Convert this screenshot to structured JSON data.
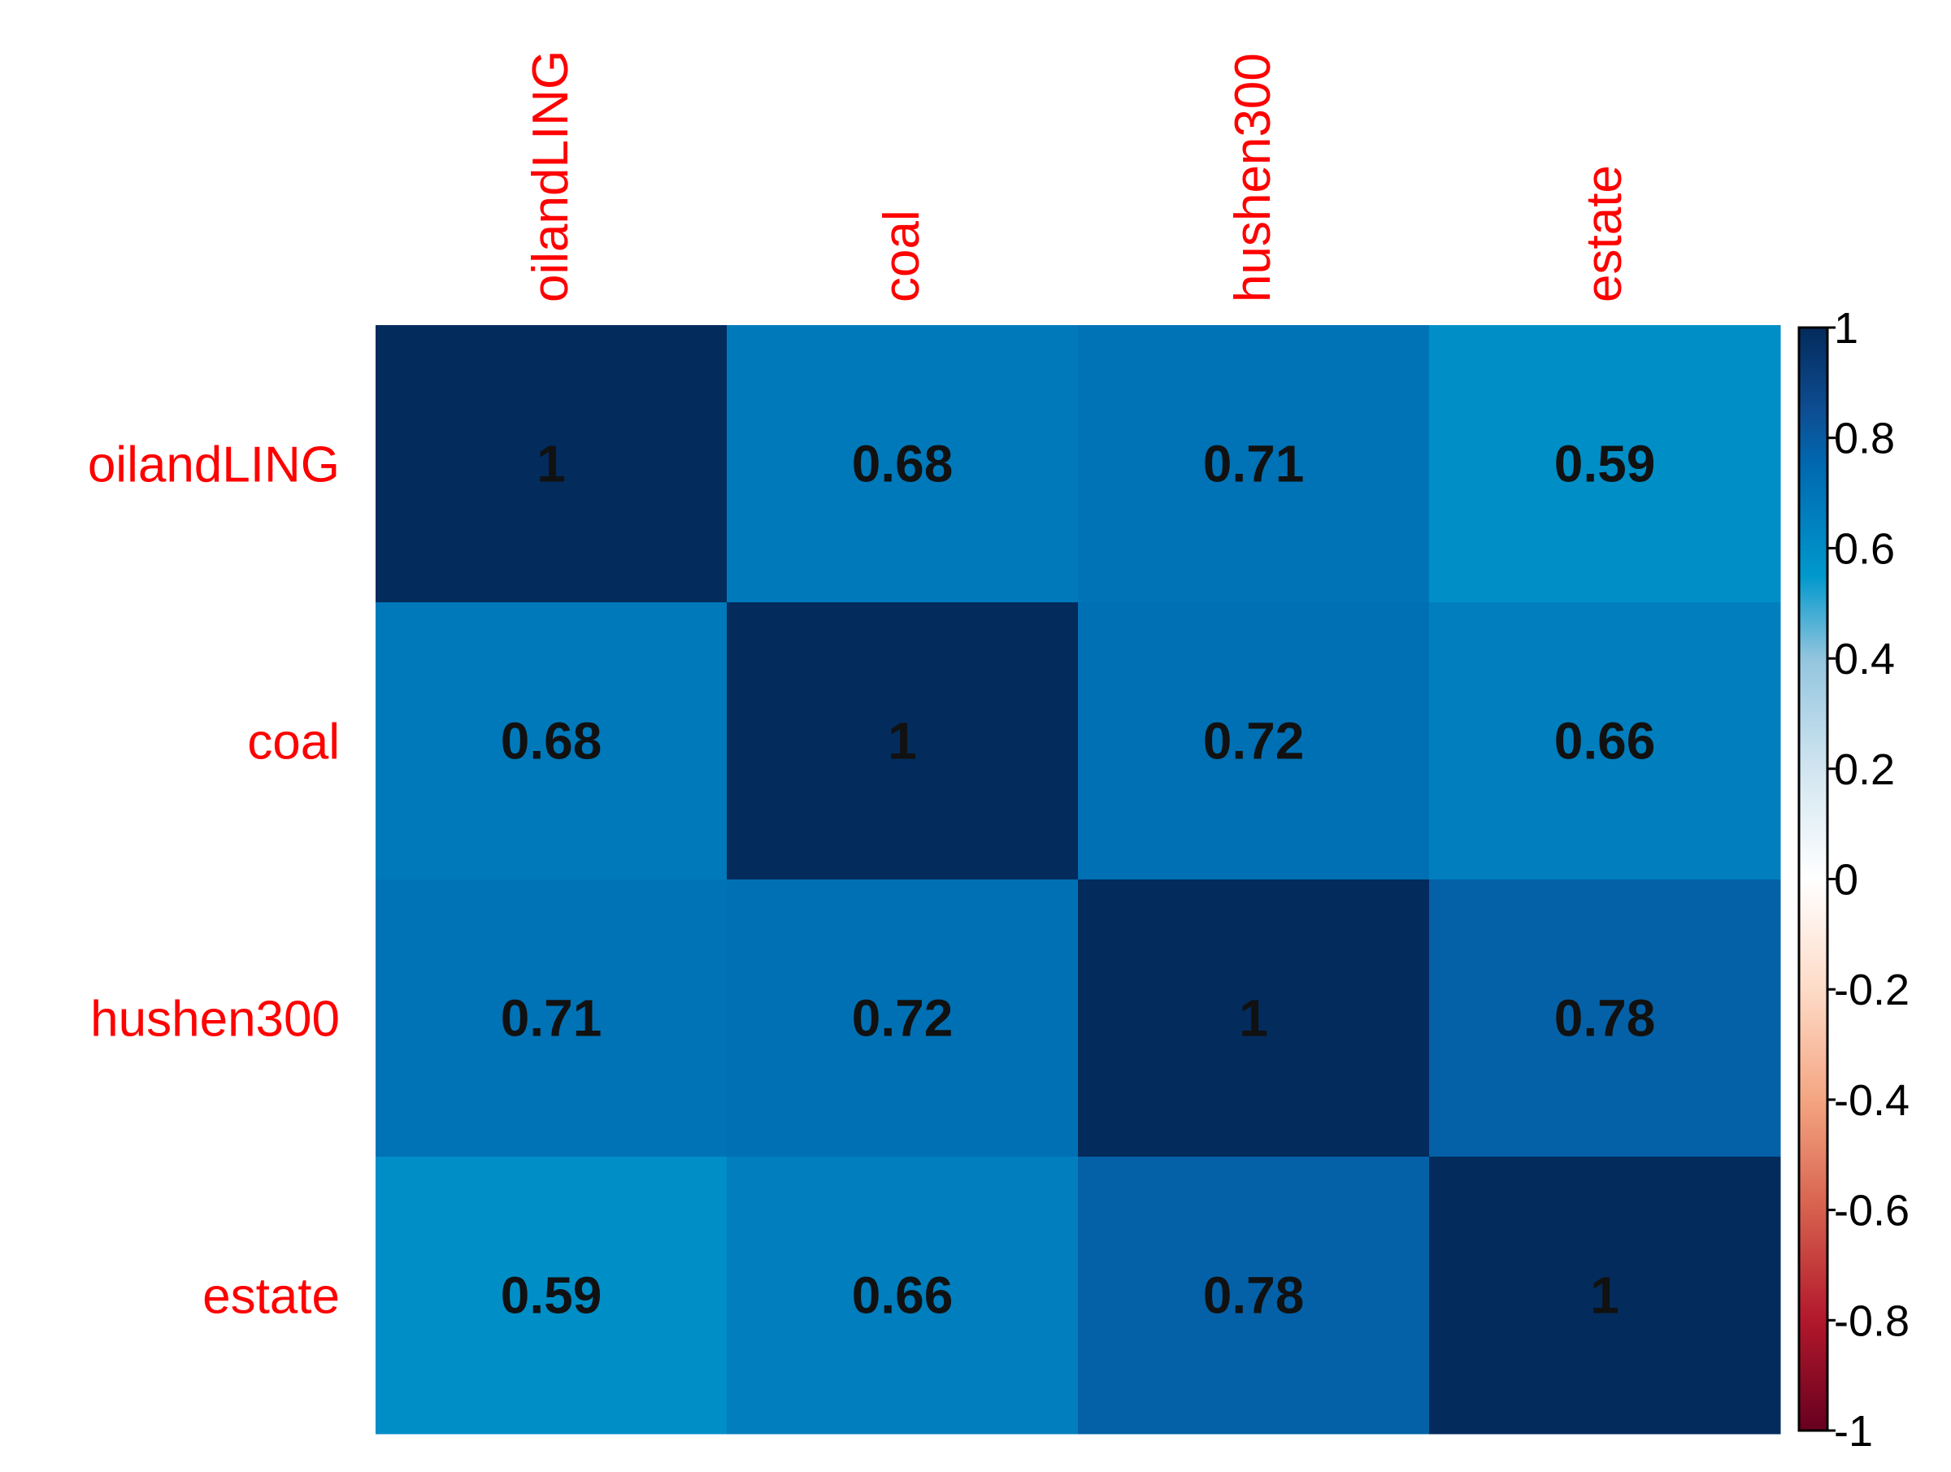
{
  "chart_data": {
    "type": "heatmap",
    "title": "",
    "rows": [
      "oilandLING",
      "coal",
      "hushen300",
      "estate"
    ],
    "columns": [
      "oilandLING",
      "coal",
      "hushen300",
      "estate"
    ],
    "values": [
      [
        1,
        0.68,
        0.71,
        0.59
      ],
      [
        0.68,
        1,
        0.72,
        0.66
      ],
      [
        0.71,
        0.72,
        1,
        0.78
      ],
      [
        0.59,
        0.66,
        0.78,
        1
      ]
    ],
    "value_labels": [
      [
        "1",
        "0.68",
        "0.71",
        "0.59"
      ],
      [
        "0.68",
        "1",
        "0.72",
        "0.66"
      ],
      [
        "0.71",
        "0.72",
        "1",
        "0.78"
      ],
      [
        "0.59",
        "0.66",
        "0.78",
        "1"
      ]
    ],
    "legend": {
      "range": [
        -1,
        1
      ],
      "ticks": [
        1,
        0.8,
        0.6,
        0.4,
        0.2,
        0,
        -0.2,
        -0.4,
        -0.6,
        -0.8,
        -1
      ],
      "tick_labels": [
        "1",
        "0.8",
        "0.6",
        "0.4",
        "0.2",
        "0",
        "-0.2",
        "-0.4",
        "-0.6",
        "-0.8",
        "-1"
      ],
      "placement": "right"
    },
    "colors": {
      "label_color": "#ff0000",
      "value_text_color": "#111111",
      "scale": [
        {
          "value": -1,
          "color": "#67001f"
        },
        {
          "value": -0.8,
          "color": "#b2182b"
        },
        {
          "value": -0.6,
          "color": "#d6604d"
        },
        {
          "value": -0.4,
          "color": "#f4a582"
        },
        {
          "value": -0.2,
          "color": "#fddbc7"
        },
        {
          "value": 0,
          "color": "#ffffff"
        },
        {
          "value": 0.2,
          "color": "#d1e5f0"
        },
        {
          "value": 0.4,
          "color": "#92c5de"
        },
        {
          "value": 0.55,
          "color": "#0098cc"
        },
        {
          "value": 0.65,
          "color": "#0080be"
        },
        {
          "value": 0.75,
          "color": "#0069b0"
        },
        {
          "value": 0.85,
          "color": "#0e4d92"
        },
        {
          "value": 1,
          "color": "#032b5c"
        }
      ]
    }
  }
}
